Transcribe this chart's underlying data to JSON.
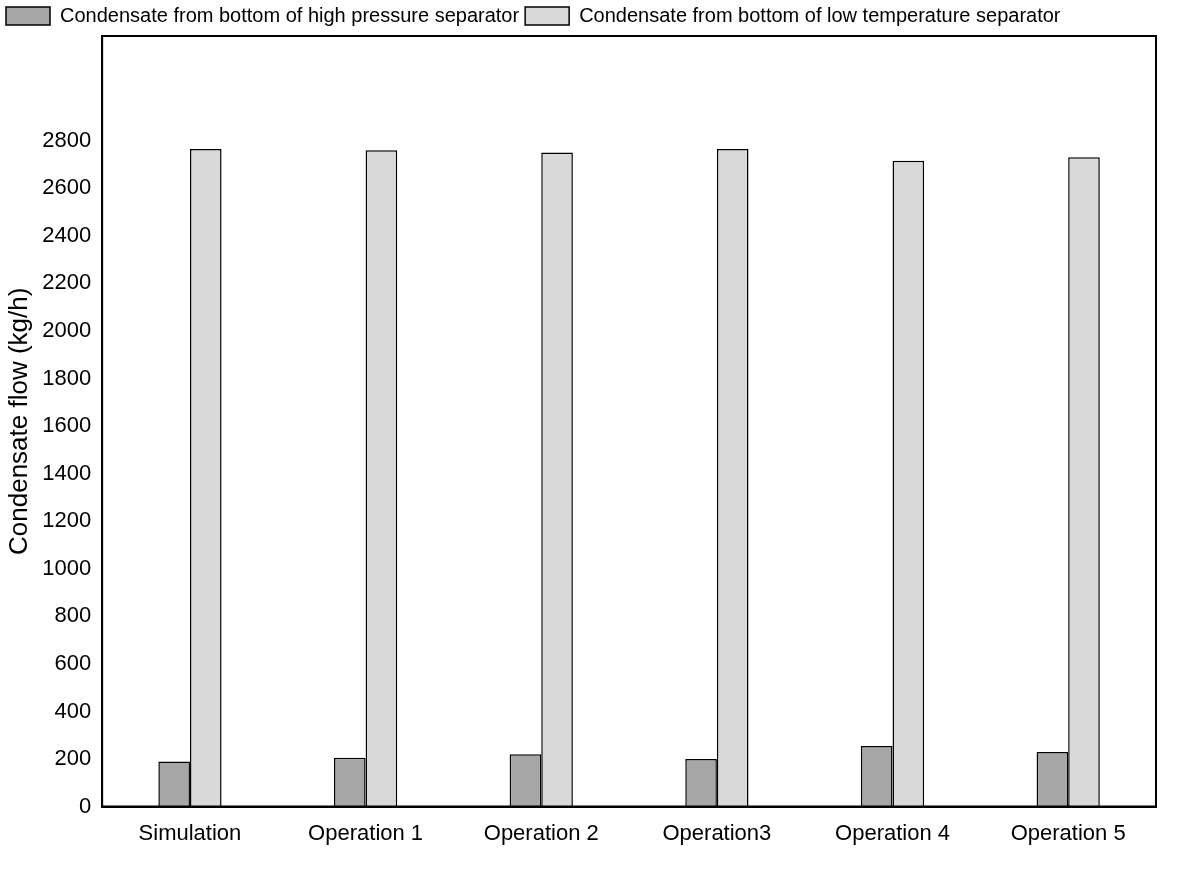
{
  "chart_data": {
    "type": "bar",
    "ylabel": "Condensate flow (kg/h)",
    "categories": [
      "Simulation",
      "Operation 1",
      "Operation 2",
      "Operation3",
      "Operation 4",
      "Operation 5"
    ],
    "series": [
      {
        "name": "Condensate from bottom of high pressure separator",
        "color": "#a6a6a6",
        "values": [
          190,
          205,
          220,
          200,
          255,
          230
        ]
      },
      {
        "name": "Condensate from bottom of low temperature separator",
        "color": "#d9d9d9",
        "values": [
          2765,
          2760,
          2750,
          2765,
          2715,
          2730
        ]
      }
    ],
    "ylim": [
      0,
      3240
    ],
    "yticks": [
      0,
      200,
      400,
      600,
      800,
      1000,
      1200,
      1400,
      1600,
      1800,
      2000,
      2200,
      2400,
      2600,
      2800
    ],
    "grid": false,
    "legend": "top"
  }
}
